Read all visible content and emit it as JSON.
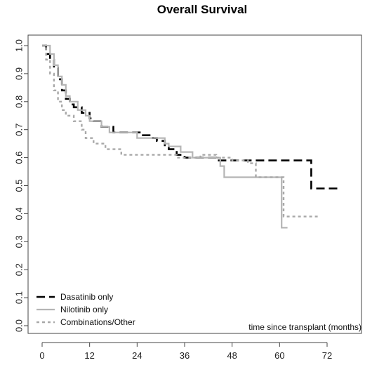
{
  "chart_data": {
    "type": "line",
    "title": "Overall Survival",
    "annotation": "time since transplant (months)",
    "xlim": [
      0,
      72
    ],
    "ylim": [
      0,
      1
    ],
    "x_ticks": [
      0,
      12,
      24,
      36,
      48,
      60,
      72
    ],
    "y_ticks": [
      0.0,
      0.1,
      0.2,
      0.3,
      0.4,
      0.5,
      0.6,
      0.7,
      0.8,
      0.9,
      1.0
    ],
    "legend_position": "bottom-left",
    "series": [
      {
        "name": "Dasatinib only",
        "style": "dashed",
        "color": "#000000",
        "points": [
          [
            0,
            1.0
          ],
          [
            1,
            0.97
          ],
          [
            2,
            0.95
          ],
          [
            3,
            0.92
          ],
          [
            4,
            0.88
          ],
          [
            5,
            0.84
          ],
          [
            6,
            0.81
          ],
          [
            7,
            0.79
          ],
          [
            8,
            0.78
          ],
          [
            10,
            0.76
          ],
          [
            12,
            0.74
          ],
          [
            13,
            0.73
          ],
          [
            15,
            0.71
          ],
          [
            18,
            0.69
          ],
          [
            21,
            0.69
          ],
          [
            25,
            0.68
          ],
          [
            28,
            0.67
          ],
          [
            29,
            0.66
          ],
          [
            31,
            0.64
          ],
          [
            32,
            0.63
          ],
          [
            34,
            0.61
          ],
          [
            36,
            0.6
          ],
          [
            40,
            0.6
          ],
          [
            44,
            0.59
          ],
          [
            52,
            0.59
          ],
          [
            60,
            0.59
          ],
          [
            67,
            0.59
          ],
          [
            68,
            0.49
          ],
          [
            75,
            0.49
          ]
        ]
      },
      {
        "name": "Nilotinib only",
        "style": "solid",
        "color": "#b5b5b5",
        "points": [
          [
            0,
            1.0
          ],
          [
            1.5,
            1.0
          ],
          [
            2,
            0.97
          ],
          [
            3,
            0.93
          ],
          [
            4,
            0.89
          ],
          [
            5,
            0.86
          ],
          [
            6,
            0.82
          ],
          [
            7,
            0.8
          ],
          [
            9,
            0.77
          ],
          [
            11,
            0.75
          ],
          [
            12,
            0.73
          ],
          [
            15,
            0.71
          ],
          [
            17,
            0.69
          ],
          [
            21,
            0.69
          ],
          [
            24,
            0.67
          ],
          [
            26,
            0.67
          ],
          [
            30,
            0.67
          ],
          [
            31,
            0.65
          ],
          [
            32,
            0.64
          ],
          [
            35,
            0.62
          ],
          [
            38,
            0.6
          ],
          [
            41,
            0.6
          ],
          [
            45,
            0.57
          ],
          [
            46,
            0.53
          ],
          [
            50,
            0.53
          ],
          [
            60,
            0.53
          ],
          [
            60.5,
            0.35
          ],
          [
            62,
            0.35
          ]
        ]
      },
      {
        "name": "Combinations/Other",
        "style": "dotted",
        "color": "#a8a8a8",
        "points": [
          [
            0,
            1.0
          ],
          [
            1,
            0.95
          ],
          [
            2,
            0.9
          ],
          [
            3,
            0.84
          ],
          [
            4,
            0.8
          ],
          [
            5,
            0.77
          ],
          [
            6,
            0.75
          ],
          [
            8,
            0.73
          ],
          [
            10,
            0.7
          ],
          [
            11,
            0.67
          ],
          [
            13,
            0.65
          ],
          [
            16,
            0.63
          ],
          [
            20,
            0.61
          ],
          [
            26,
            0.61
          ],
          [
            30,
            0.61
          ],
          [
            34,
            0.6
          ],
          [
            38,
            0.6
          ],
          [
            40,
            0.61
          ],
          [
            44,
            0.6
          ],
          [
            48,
            0.59
          ],
          [
            52,
            0.58
          ],
          [
            54,
            0.53
          ],
          [
            60,
            0.53
          ],
          [
            61,
            0.39
          ],
          [
            70,
            0.39
          ]
        ]
      }
    ]
  }
}
